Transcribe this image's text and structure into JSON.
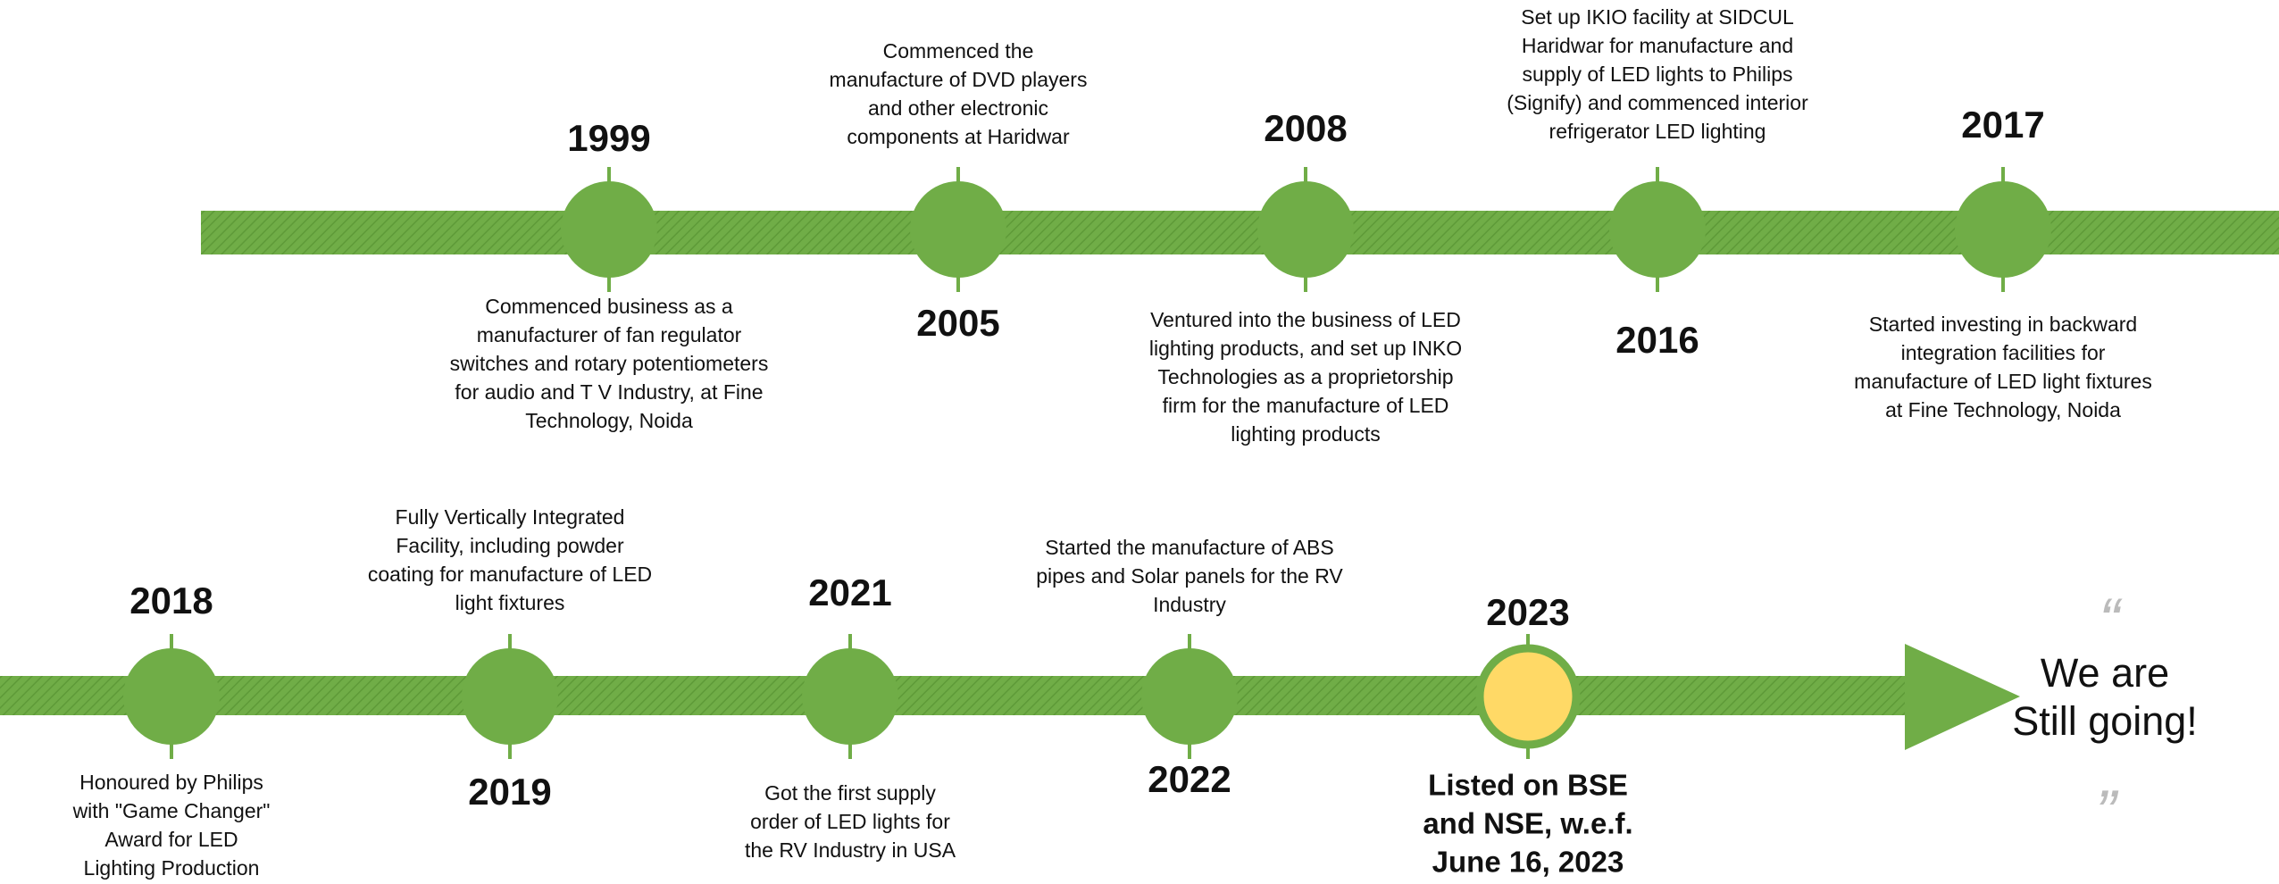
{
  "timeline": {
    "events": [
      {
        "year": "1999",
        "description": [
          "Commenced business as a",
          "manufacturer of fan regulator",
          "switches and rotary potentiometers",
          "for audio and T V Industry, at Fine",
          "Technology, Noida"
        ]
      },
      {
        "year": "2005",
        "description": [
          "Commenced the",
          "manufacture of DVD players",
          "and other electronic",
          "components at Haridwar"
        ]
      },
      {
        "year": "2008",
        "description": [
          "Ventured into the business of LED",
          "lighting products, and set up INKO",
          "Technologies as a proprietorship",
          "firm for the manufacture of LED",
          "lighting products"
        ]
      },
      {
        "year": "2016",
        "description": [
          "Set up IKIO facility at SIDCUL",
          "Haridwar for manufacture and",
          "supply of LED lights to Philips",
          "(Signify) and commenced interior",
          "refrigerator LED lighting"
        ]
      },
      {
        "year": "2017",
        "description": [
          "Started investing in backward",
          "integration facilities for",
          "manufacture of LED light fixtures",
          "at Fine Technology, Noida"
        ]
      },
      {
        "year": "2018",
        "description": [
          "Honoured by Philips",
          "with \"Game Changer\"",
          "Award for LED",
          "Lighting Production"
        ]
      },
      {
        "year": "2019",
        "description": [
          "Fully Vertically Integrated",
          "Facility, including powder",
          "coating for manufacture of LED",
          "light fixtures"
        ]
      },
      {
        "year": "2021",
        "description": [
          "Got the first supply",
          "order of LED lights for",
          "the RV Industry in USA"
        ]
      },
      {
        "year": "2022",
        "description": [
          "Started the manufacture of ABS",
          "pipes and Solar panels for the RV",
          "Industry"
        ]
      },
      {
        "year": "2023",
        "description": [
          "Listed on BSE",
          "and NSE, w.e.f.",
          "June 16, 2023"
        ]
      }
    ],
    "final_message": [
      "We are",
      "Still going!"
    ]
  }
}
